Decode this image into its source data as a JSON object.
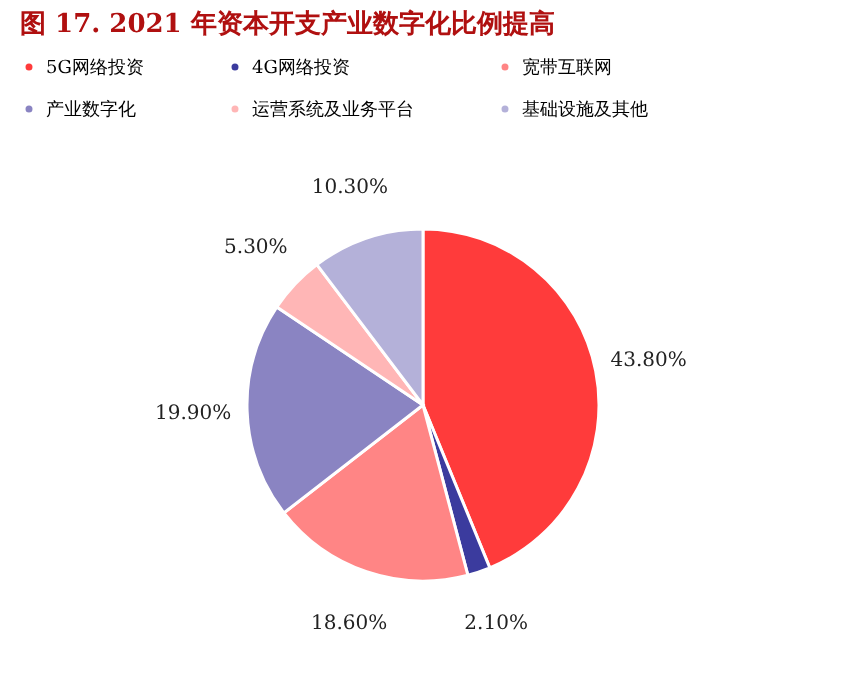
{
  "chart_data": {
    "type": "pie",
    "title": "图 17. 2021 年资本开支产业数字化比例提高",
    "categories": [
      "5G网络投资",
      "4G网络投资",
      "宽带互联网",
      "产业数字化",
      "运营系统及业务平台",
      "基础设施及其他"
    ],
    "values": [
      43.8,
      2.1,
      18.6,
      19.9,
      5.3,
      10.3
    ],
    "value_labels": [
      "43.80%",
      "2.10%",
      "18.60%",
      "19.90%",
      "5.30%",
      "10.30%"
    ],
    "colors": [
      "#ff3b3b",
      "#3b3b9e",
      "#ff8585",
      "#8a84c2",
      "#ffb6b6",
      "#b4b1d9"
    ],
    "legend": "top"
  }
}
